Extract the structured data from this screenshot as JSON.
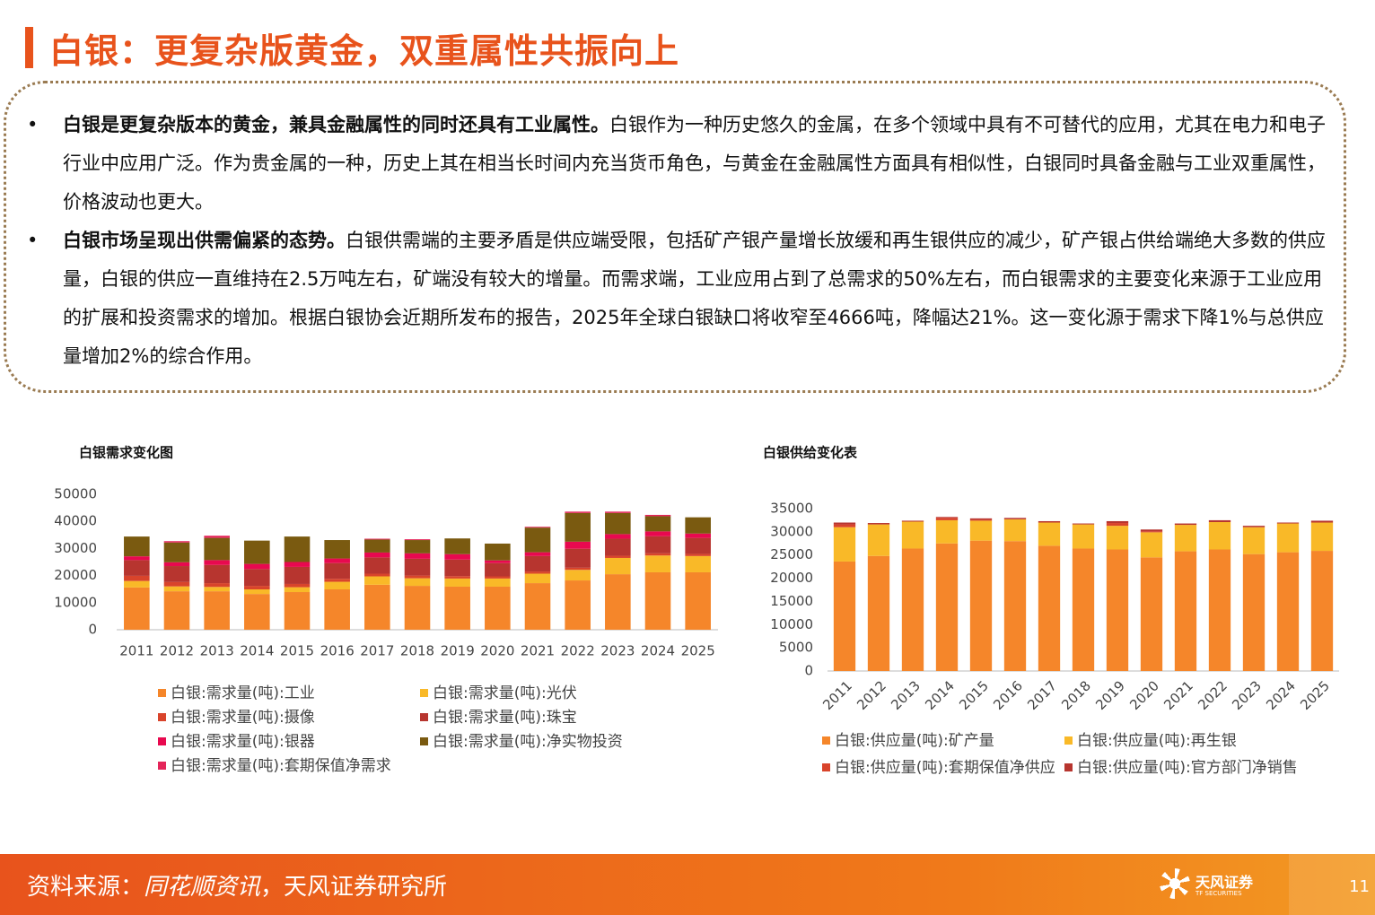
{
  "header": {
    "title": "白银：更复杂版黄金，双重属性共振向上"
  },
  "bullets": [
    {
      "bold": "白银是更复杂版本的黄金，兼具金融属性的同时还具有工业属性。",
      "text": "白银作为一种历史悠久的金属，在多个领域中具有不可替代的应用，尤其在电力和电子行业中应用广泛。作为贵金属的一种，历史上其在相当长时间内充当货币角色，与黄金在金融属性方面具有相似性，白银同时具备金融与工业双重属性，价格波动也更大。"
    },
    {
      "bold": "白银市场呈现出供需偏紧的态势。",
      "text": "白银供需端的主要矛盾是供应端受限，包括矿产银产量增长放缓和再生银供应的减少，矿产银占供给端绝大多数的供应量，白银的供应一直维持在2.5万吨左右，矿端没有较大的增量。而需求端，工业应用占到了总需求的50%左右，而白银需求的主要变化来源于工业应用的扩展和投资需求的增加。根据白银协会近期所发布的报告，2025年全球白银缺口将收窄至4666吨，降幅达21%。这一变化源于需求下降1%与总供应量增加2%的综合作用。"
    }
  ],
  "chart_data": [
    {
      "type": "stacked_bar",
      "title": "白银需求变化图",
      "categories": [
        "2011",
        "2012",
        "2013",
        "2014",
        "2015",
        "2016",
        "2017",
        "2018",
        "2019",
        "2020",
        "2021",
        "2022",
        "2023",
        "2024",
        "2025"
      ],
      "ylim": [
        0,
        50000
      ],
      "yticks": [
        0,
        10000,
        20000,
        30000,
        40000,
        50000
      ],
      "grid": false,
      "series": [
        {
          "name": "白银:需求量(吨):工业",
          "color": "#f5862a",
          "values": [
            15600,
            14200,
            14200,
            13200,
            13900,
            14900,
            16600,
            16200,
            15900,
            15900,
            17200,
            18200,
            20500,
            21200,
            21200
          ]
        },
        {
          "name": "白银:需求量(吨):光伏",
          "color": "#f9b928",
          "values": [
            2400,
            1800,
            1600,
            1700,
            1800,
            2800,
            3100,
            2800,
            3000,
            3000,
            3500,
            3900,
            6000,
            6200,
            6000
          ]
        },
        {
          "name": "白银:需求量(吨):摄像",
          "color": "#d9442b",
          "values": [
            1900,
            1600,
            1400,
            1300,
            1200,
            1100,
            1000,
            1000,
            900,
            800,
            800,
            800,
            800,
            800,
            800
          ]
        },
        {
          "name": "白银:需求量(吨):珠宝",
          "color": "#b7352f",
          "values": [
            5800,
            5900,
            6700,
            6200,
            6300,
            5800,
            6000,
            6200,
            6100,
            4900,
            5700,
            7000,
            6300,
            6300,
            5900
          ]
        },
        {
          "name": "白银:需求量(吨):银器",
          "color": "#e8094f",
          "values": [
            1400,
            1400,
            1800,
            1900,
            1800,
            1700,
            1800,
            2000,
            2000,
            1000,
            1400,
            2600,
            1700,
            1800,
            1600
          ]
        },
        {
          "name": "白银:需求量(吨):净实物投资",
          "color": "#7a5a10",
          "values": [
            7300,
            7300,
            8200,
            8600,
            9400,
            6800,
            4800,
            4900,
            5800,
            6200,
            9100,
            10600,
            7800,
            5600,
            6000
          ]
        },
        {
          "name": "白银:需求量(吨):套期保值净需求",
          "color": "#e4255a",
          "values": [
            0,
            500,
            800,
            0,
            0,
            0,
            300,
            300,
            0,
            0,
            300,
            500,
            500,
            500,
            0
          ]
        }
      ]
    },
    {
      "type": "stacked_bar",
      "title": "白银供给变化表",
      "categories": [
        "2011",
        "2012",
        "2013",
        "2014",
        "2015",
        "2016",
        "2017",
        "2018",
        "2019",
        "2020",
        "2021",
        "2022",
        "2023",
        "2024",
        "2025"
      ],
      "ylim": [
        0,
        35000
      ],
      "yticks": [
        0,
        5000,
        10000,
        15000,
        20000,
        25000,
        30000,
        35000
      ],
      "grid": false,
      "series": [
        {
          "name": "白银:供应量(吨):矿产量",
          "color": "#f5862a",
          "values": [
            23600,
            24800,
            26400,
            27500,
            28100,
            28000,
            27000,
            26400,
            26200,
            24500,
            25800,
            26200,
            25200,
            25600,
            25900
          ]
        },
        {
          "name": "白银:供应量(吨):再生银",
          "color": "#f9b928",
          "values": [
            7400,
            6800,
            5800,
            5000,
            4300,
            4700,
            5000,
            5200,
            5100,
            5400,
            5700,
            5900,
            5800,
            6200,
            6100
          ]
        },
        {
          "name": "白银:供应量(吨):套期保值净供应",
          "color": "#d9442b",
          "values": [
            600,
            0,
            0,
            500,
            200,
            0,
            0,
            0,
            600,
            200,
            0,
            0,
            0,
            0,
            0
          ]
        },
        {
          "name": "白银:供应量(吨):官方部门净销售",
          "color": "#b7352f",
          "values": [
            400,
            300,
            200,
            200,
            300,
            300,
            300,
            200,
            400,
            400,
            300,
            400,
            300,
            200,
            400
          ]
        }
      ]
    }
  ],
  "footer": {
    "source_prefix": "资料来源：",
    "source_main": "同花顺资讯",
    "source_rest": "，天风证券研究所",
    "logo": "天风证券",
    "logo_en": "TF SECURITIES",
    "page": "11"
  }
}
